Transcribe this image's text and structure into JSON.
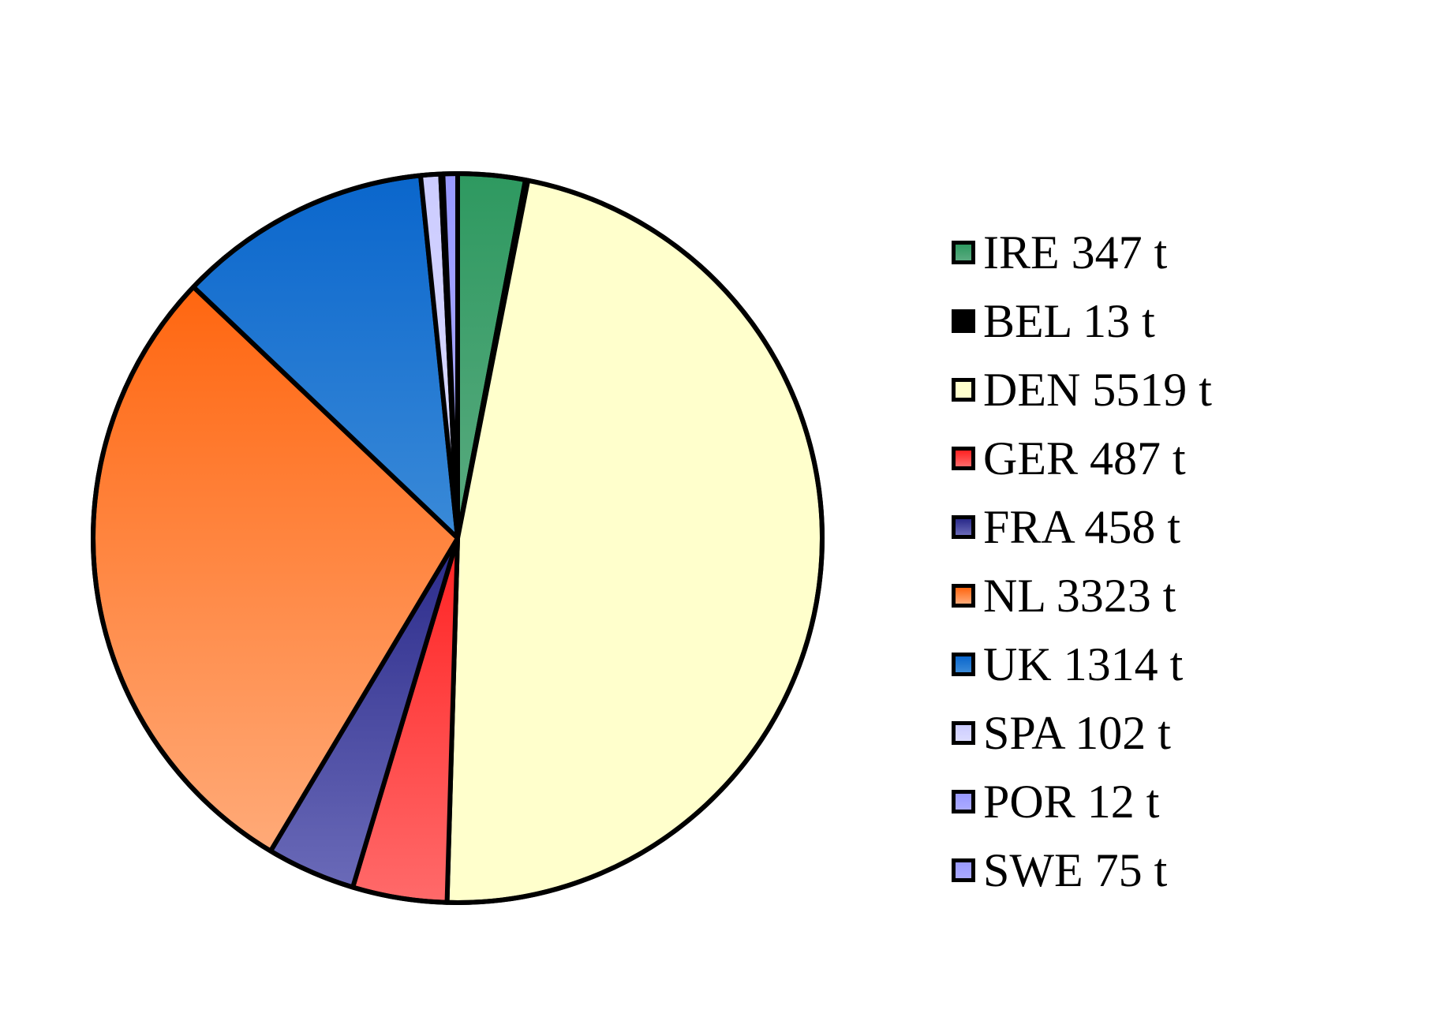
{
  "chart_data": {
    "type": "pie",
    "unit": "t",
    "start_angle_deg": 0,
    "direction": "clockwise",
    "slices": [
      {
        "label": "IRE 347 t",
        "country": "IRE",
        "value": 347,
        "color_top": "#2e9960",
        "color_bottom": "#5aab80"
      },
      {
        "label": "BEL 13 t",
        "country": "BEL",
        "value": 13,
        "color_top": "#000000",
        "color_bottom": "#000000"
      },
      {
        "label": "DEN 5519 t",
        "country": "DEN",
        "value": 5519,
        "color_top": "#ffffcc",
        "color_bottom": "#ffffcc"
      },
      {
        "label": "GER 487 t",
        "country": "GER",
        "value": 487,
        "color_top": "#ff2222",
        "color_bottom": "#ff6a6a"
      },
      {
        "label": "FRA 458 t",
        "country": "FRA",
        "value": 458,
        "color_top": "#2a2a8a",
        "color_bottom": "#6a6ab8"
      },
      {
        "label": "NL 3323 t",
        "country": "NL",
        "value": 3323,
        "color_top": "#ff6610",
        "color_bottom": "#ffaa78"
      },
      {
        "label": "UK 1314 t",
        "country": "UK",
        "value": 1314,
        "color_top": "#0a66cc",
        "color_bottom": "#3a8ad8"
      },
      {
        "label": "SPA 102 t",
        "country": "SPA",
        "value": 102,
        "color_top": "#ccccff",
        "color_bottom": "#dcdcff"
      },
      {
        "label": "POR 12 t",
        "country": "POR",
        "value": 12,
        "color_top": "#9999ff",
        "color_bottom": "#aaaaff"
      },
      {
        "label": "SWE 75 t",
        "country": "SWE",
        "value": 75,
        "color_top": "#9999ff",
        "color_bottom": "#aaaaff"
      }
    ],
    "legend_position": "right"
  }
}
